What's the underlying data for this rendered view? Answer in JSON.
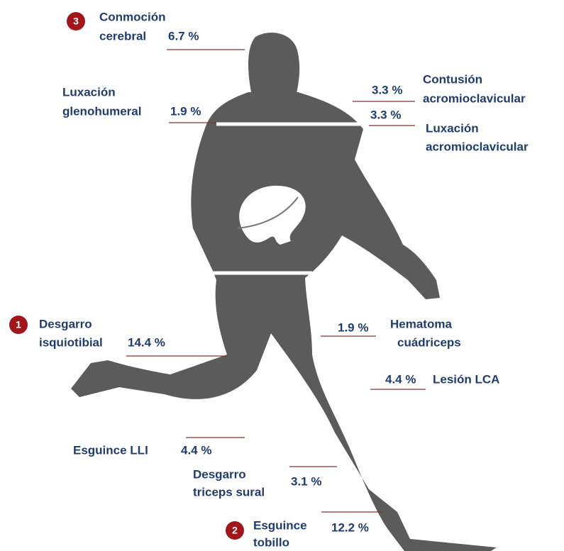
{
  "labels": [
    {
      "rank": "3",
      "lines": [
        "Conmoción",
        "cerebral"
      ],
      "percent": "6.7 %"
    },
    {
      "lines": [
        "Luxación",
        "glenohumeral"
      ],
      "percent": "1.9 %"
    },
    {
      "lines": [
        "Contusión",
        "acromioclavicular"
      ],
      "percent": "3.3 %"
    },
    {
      "lines": [
        "Luxación",
        "acromioclavicular"
      ],
      "percent": "3.3 %"
    },
    {
      "rank": "1",
      "lines": [
        "Desgarro",
        "isquiotibial"
      ],
      "percent": "14.4 %"
    },
    {
      "lines": [
        "Hematoma",
        "cuádriceps"
      ],
      "percent": "1.9 %"
    },
    {
      "lines": [
        "Lesión LCA"
      ],
      "percent": "4.4 %"
    },
    {
      "lines": [
        "Esguince LLI"
      ],
      "percent": "4.4 %"
    },
    {
      "lines": [
        "Desgarro",
        "triceps sural"
      ],
      "percent": "3.1 %"
    },
    {
      "rank": "2",
      "lines": [
        "Esguince",
        "tobillo"
      ],
      "percent": "12.2 %"
    }
  ]
}
